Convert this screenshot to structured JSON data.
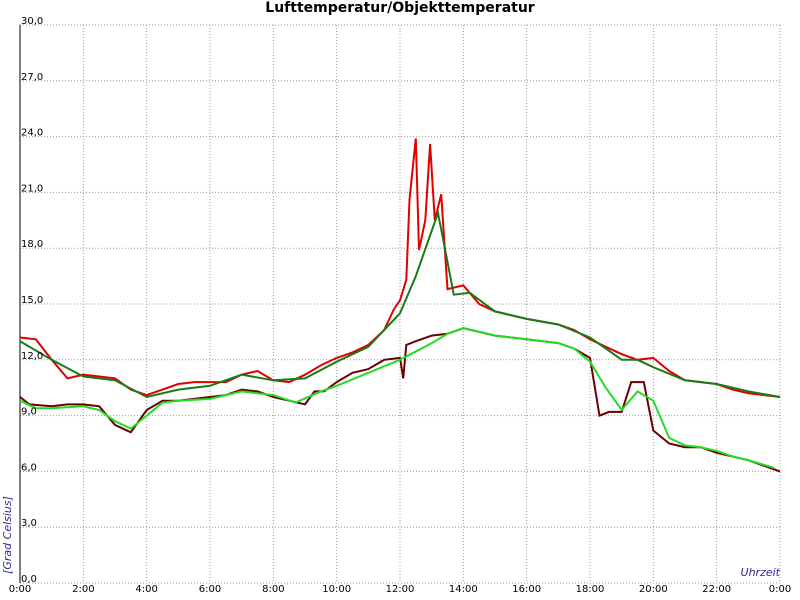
{
  "chart_data": {
    "type": "line",
    "title": "Lufttemperatur/Objekttemperatur",
    "ylabel": "[Grad Celsius]",
    "xlabel": "Uhrzeit",
    "grid": true,
    "xlim": [
      0,
      24
    ],
    "xticks": [
      {
        "value": 0,
        "label": "0:00"
      },
      {
        "value": 2,
        "label": "2:00"
      },
      {
        "value": 4,
        "label": "4:00"
      },
      {
        "value": 6,
        "label": "6:00"
      },
      {
        "value": 8,
        "label": "8:00"
      },
      {
        "value": 10,
        "label": "10:00"
      },
      {
        "value": 12,
        "label": "12:00"
      },
      {
        "value": 14,
        "label": "14:00"
      },
      {
        "value": 16,
        "label": "16:00"
      },
      {
        "value": 18,
        "label": "18:00"
      },
      {
        "value": 20,
        "label": "20:00"
      },
      {
        "value": 22,
        "label": "22:00"
      },
      {
        "value": 24,
        "label": "0:00"
      }
    ],
    "ylim": [
      0,
      30
    ],
    "yticks": [
      {
        "value": 0,
        "label": "0,0"
      },
      {
        "value": 3,
        "label": "3,0"
      },
      {
        "value": 6,
        "label": "6,0"
      },
      {
        "value": 9,
        "label": "9,0"
      },
      {
        "value": 12,
        "label": "12,0"
      },
      {
        "value": 15,
        "label": "15,0"
      },
      {
        "value": 18,
        "label": "18,0"
      },
      {
        "value": 21,
        "label": "21,0"
      },
      {
        "value": 24,
        "label": "24,0"
      },
      {
        "value": 27,
        "label": "27,0"
      },
      {
        "value": 30,
        "label": "30,0"
      }
    ],
    "series": [
      {
        "color": "#e00000",
        "x": [
          0,
          0.5,
          1,
          1.5,
          2,
          2.5,
          3,
          3.5,
          4,
          4.5,
          5,
          5.5,
          6,
          6.5,
          7,
          7.5,
          8,
          8.5,
          9,
          9.5,
          10,
          10.5,
          11,
          11.5,
          11.8,
          12,
          12.2,
          12.3,
          12.5,
          12.6,
          12.8,
          12.95,
          13.1,
          13.3,
          13.5,
          14,
          14.5,
          15,
          15.5,
          16,
          17,
          17.5,
          18,
          18.5,
          19,
          19.5,
          20,
          20.5,
          21,
          21.5,
          22,
          22.5,
          23,
          23.5,
          24
        ],
        "values": [
          13.2,
          13.1,
          12.0,
          11.0,
          11.2,
          11.1,
          11.0,
          10.4,
          10.1,
          10.4,
          10.7,
          10.8,
          10.8,
          10.8,
          11.2,
          11.4,
          10.9,
          10.8,
          11.2,
          11.7,
          12.1,
          12.4,
          12.8,
          13.6,
          14.7,
          15.2,
          16.3,
          20.6,
          23.9,
          17.9,
          19.5,
          23.6,
          19.5,
          20.9,
          15.8,
          16.0,
          15.0,
          14.6,
          14.4,
          14.2,
          13.9,
          13.6,
          13.1,
          12.7,
          12.3,
          12.0,
          12.1,
          11.4,
          10.9,
          10.8,
          10.7,
          10.4,
          10.2,
          10.1,
          10.0
        ]
      },
      {
        "color": "#1a7a1a",
        "x": [
          0,
          1,
          2,
          3,
          4,
          5,
          6,
          7,
          8,
          9,
          10,
          11,
          12,
          12.5,
          13.2,
          13.7,
          14.2,
          15,
          16,
          17,
          18,
          18.5,
          19,
          19.5,
          20,
          21,
          22,
          23,
          24
        ],
        "values": [
          13.0,
          12.0,
          11.1,
          10.9,
          10.0,
          10.4,
          10.6,
          11.2,
          10.9,
          11.0,
          11.9,
          12.7,
          14.5,
          16.5,
          19.9,
          15.5,
          15.6,
          14.6,
          14.2,
          13.9,
          13.2,
          12.6,
          12.0,
          12.0,
          11.6,
          10.9,
          10.7,
          10.3,
          10.0
        ]
      },
      {
        "color": "#6a0000",
        "x": [
          0,
          0.3,
          1,
          1.5,
          2,
          2.5,
          3,
          3.5,
          4,
          4.5,
          5,
          5.5,
          6,
          6.5,
          7,
          7.5,
          8,
          8.5,
          9,
          9.3,
          9.6,
          10,
          10.5,
          11,
          11.5,
          12,
          12.1,
          12.2,
          12.5,
          13,
          13.5,
          14,
          15,
          16,
          17,
          17.5,
          18,
          18.3,
          18.6,
          19,
          19.3,
          19.7,
          20,
          20.5,
          21,
          21.5,
          22,
          22.5,
          23,
          23.5,
          24
        ],
        "values": [
          10.0,
          9.6,
          9.5,
          9.6,
          9.6,
          9.5,
          8.5,
          8.1,
          9.3,
          9.8,
          9.8,
          9.9,
          10.0,
          10.1,
          10.4,
          10.3,
          10.0,
          9.8,
          9.6,
          10.3,
          10.3,
          10.8,
          11.3,
          11.5,
          12.0,
          12.1,
          11.0,
          12.8,
          13.0,
          13.3,
          13.4,
          13.7,
          13.3,
          13.1,
          12.9,
          12.6,
          12.1,
          9.0,
          9.2,
          9.2,
          10.8,
          10.8,
          8.2,
          7.5,
          7.3,
          7.3,
          7.0,
          6.8,
          6.6,
          6.3,
          6.0
        ]
      },
      {
        "color": "#22dd22",
        "x": [
          0,
          0.5,
          1,
          2,
          2.5,
          3,
          3.5,
          4,
          4.5,
          5,
          6,
          7,
          8,
          8.7,
          9.5,
          10,
          11,
          12,
          13,
          13.5,
          14,
          15,
          16,
          17,
          17.5,
          18,
          18.5,
          19,
          19.5,
          20,
          20.5,
          21,
          21.5,
          22,
          22.5,
          23,
          23.8
        ],
        "values": [
          9.8,
          9.4,
          9.4,
          9.5,
          9.3,
          8.7,
          8.3,
          9.0,
          9.7,
          9.8,
          9.9,
          10.3,
          10.1,
          9.7,
          10.3,
          10.6,
          11.3,
          12.0,
          12.9,
          13.4,
          13.7,
          13.3,
          13.1,
          12.9,
          12.6,
          11.9,
          10.5,
          9.3,
          10.3,
          9.8,
          7.8,
          7.4,
          7.3,
          7.1,
          6.8,
          6.6,
          6.2
        ]
      }
    ]
  }
}
